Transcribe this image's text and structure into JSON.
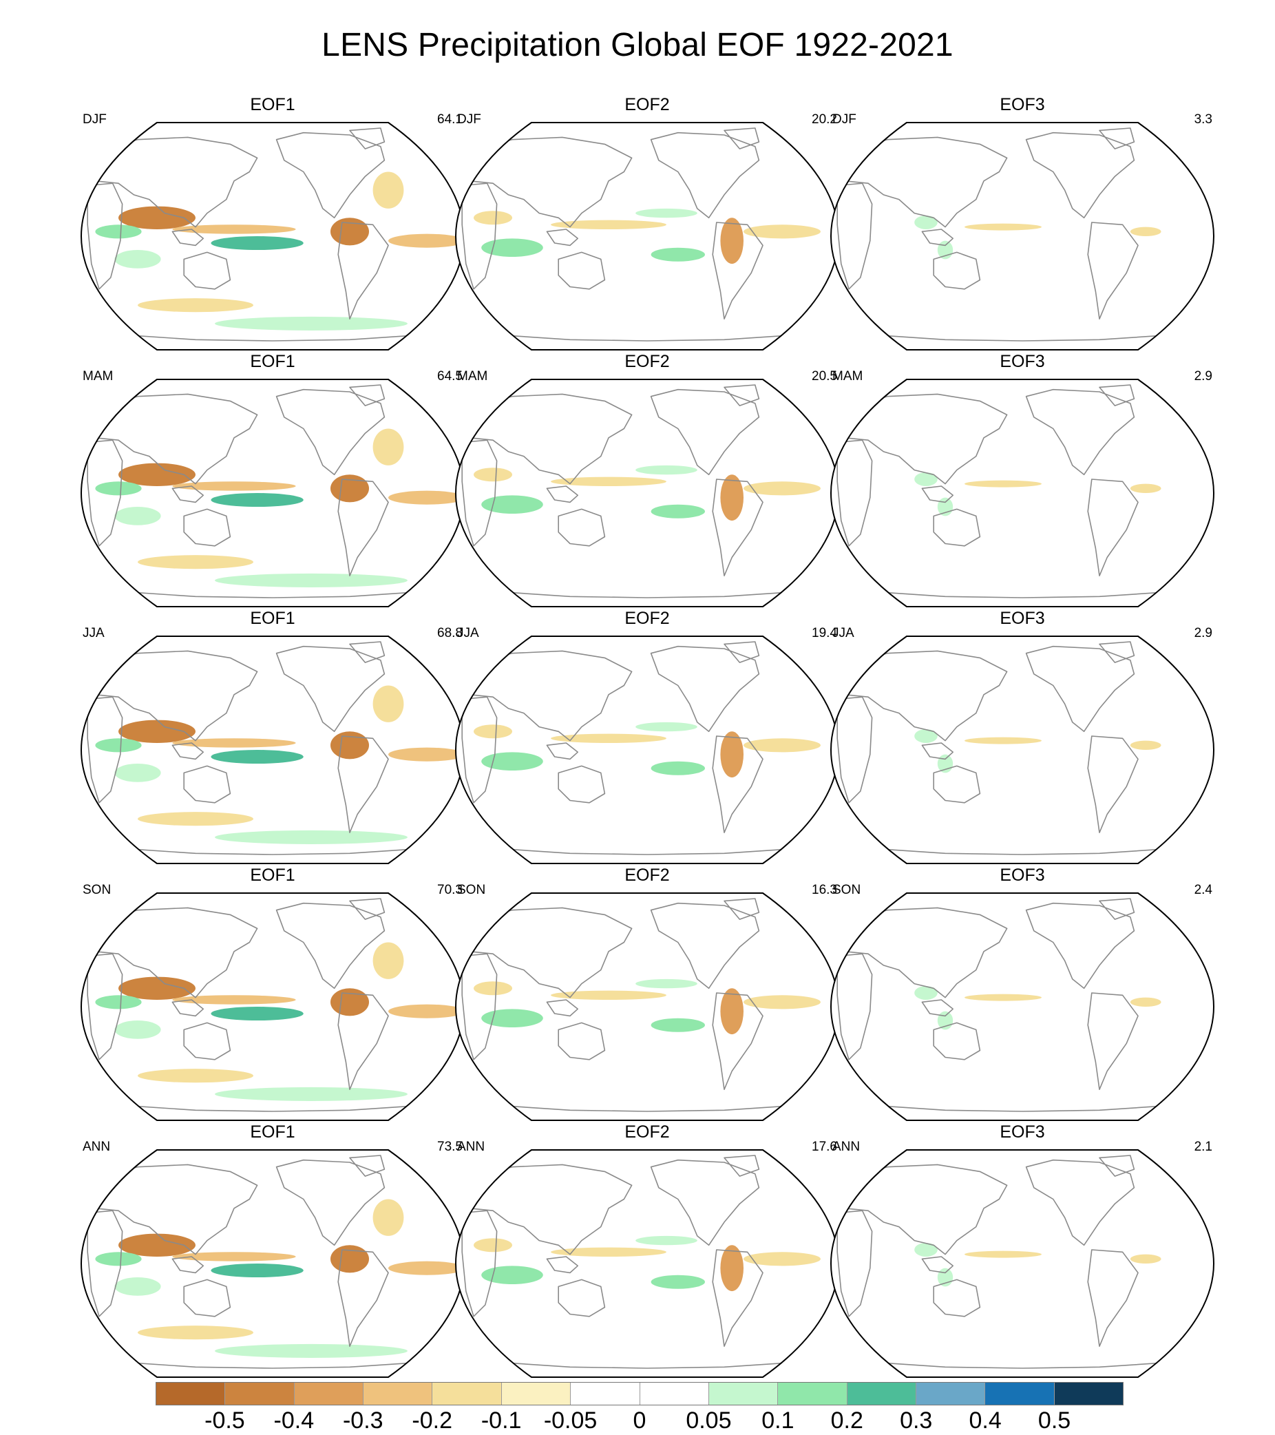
{
  "title": "LENS Precipitation Global EOF 1922-2021",
  "column_labels": [
    "EOF1",
    "EOF2",
    "EOF3"
  ],
  "rows": [
    {
      "season": "DJF",
      "variance": [
        "64.1",
        "20.2",
        "3.3"
      ]
    },
    {
      "season": "MAM",
      "variance": [
        "64.5",
        "20.5",
        "2.9"
      ]
    },
    {
      "season": "JJA",
      "variance": [
        "68.8",
        "19.4",
        "2.9"
      ]
    },
    {
      "season": "SON",
      "variance": [
        "70.3",
        "16.3",
        "2.4"
      ]
    },
    {
      "season": "ANN",
      "variance": [
        "73.5",
        "17.6",
        "2.1"
      ]
    }
  ],
  "colorbar": {
    "labels": [
      "-0.5",
      "-0.4",
      "-0.3",
      "-0.2",
      "-0.1",
      "-0.05",
      "0",
      "0.05",
      "0.1",
      "0.2",
      "0.3",
      "0.4",
      "0.5"
    ],
    "colors": [
      "#b5692a",
      "#cc843f",
      "#df9f5a",
      "#efc27d",
      "#f5df9b",
      "#fbf1c1",
      "#ffffff",
      "#ffffff",
      "#c5f7cf",
      "#90e7aa",
      "#4dbd98",
      "#6aa7c8",
      "#1772b4",
      "#0f3a59"
    ]
  }
}
